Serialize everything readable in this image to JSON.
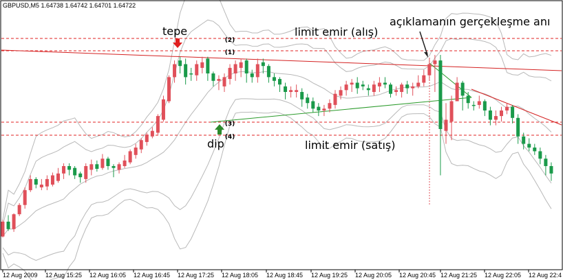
{
  "chart_data": {
    "type": "candlestick",
    "symbol_header": "GBPUSD,M5  1.64738 1.64742 1.64701 1.64722",
    "x_tick_labels": [
      "12 Aug 2009",
      "12 Aug 15:25",
      "12 Aug 16:05",
      "12 Aug 16:45",
      "12 Aug 17:25",
      "12 Aug 18:05",
      "12 Aug 18:45",
      "12 Aug 19:25",
      "12 Aug 20:05",
      "12 Aug 20:45",
      "12 Aug 21:25",
      "12 Aug 22:05",
      "12 Aug 22:4"
    ],
    "candles": [
      [
        20,
        4,
        22,
        3
      ],
      [
        12,
        20,
        27,
        10
      ],
      [
        28,
        12,
        29,
        9
      ],
      [
        38,
        28,
        40,
        26
      ],
      [
        54,
        38,
        57,
        34
      ],
      [
        66,
        54,
        70,
        52
      ],
      [
        60,
        66,
        68,
        56
      ],
      [
        60,
        57,
        66,
        54
      ],
      [
        66,
        58,
        70,
        54
      ],
      [
        70,
        60,
        73,
        58
      ],
      [
        72,
        64,
        78,
        62
      ],
      [
        80,
        72,
        83,
        66
      ],
      [
        76,
        80,
        83,
        70
      ],
      [
        70,
        78,
        80,
        66
      ],
      [
        68,
        72,
        74,
        62
      ],
      [
        80,
        66,
        83,
        62
      ],
      [
        82,
        76,
        87,
        70
      ],
      [
        77,
        82,
        86,
        74
      ],
      [
        88,
        78,
        93,
        76
      ],
      [
        80,
        88,
        90,
        76
      ],
      [
        78,
        80,
        82,
        68
      ],
      [
        82,
        76,
        84,
        72
      ],
      [
        86,
        80,
        92,
        78
      ],
      [
        96,
        84,
        98,
        82
      ],
      [
        100,
        92,
        104,
        88
      ],
      [
        108,
        98,
        110,
        94
      ],
      [
        114,
        106,
        116,
        102
      ],
      [
        118,
        112,
        122,
        110
      ],
      [
        134,
        116,
        136,
        114
      ],
      [
        152,
        130,
        156,
        128
      ],
      [
        176,
        150,
        178,
        148
      ],
      [
        190,
        176,
        194,
        170
      ],
      [
        188,
        194,
        198,
        180
      ],
      [
        176,
        190,
        196,
        168
      ],
      [
        180,
        180,
        186,
        172
      ],
      [
        190,
        178,
        194,
        172
      ],
      [
        192,
        186,
        198,
        180
      ],
      [
        180,
        196,
        198,
        172
      ],
      [
        172,
        180,
        182,
        166
      ],
      [
        174,
        172,
        178,
        162
      ],
      [
        176,
        166,
        180,
        160
      ],
      [
        186,
        174,
        190,
        168
      ],
      [
        190,
        180,
        194,
        172
      ],
      [
        192,
        186,
        196,
        176
      ],
      [
        180,
        194,
        196,
        170
      ],
      [
        176,
        180,
        184,
        170
      ],
      [
        190,
        176,
        196,
        170
      ],
      [
        188,
        192,
        196,
        180
      ],
      [
        176,
        188,
        190,
        170
      ],
      [
        172,
        176,
        180,
        166
      ],
      [
        168,
        174,
        176,
        160
      ],
      [
        160,
        166,
        170,
        152
      ],
      [
        162,
        160,
        166,
        154
      ],
      [
        162,
        160,
        168,
        154
      ],
      [
        152,
        160,
        164,
        144
      ],
      [
        148,
        154,
        158,
        142
      ],
      [
        142,
        150,
        154,
        138
      ],
      [
        140,
        144,
        148,
        134
      ],
      [
        142,
        140,
        146,
        134
      ],
      [
        148,
        142,
        152,
        138
      ],
      [
        158,
        146,
        162,
        142
      ],
      [
        162,
        156,
        166,
        152
      ],
      [
        168,
        162,
        172,
        156
      ],
      [
        170,
        168,
        174,
        160
      ],
      [
        164,
        170,
        176,
        158
      ],
      [
        166,
        168,
        172,
        162
      ],
      [
        162,
        164,
        168,
        156
      ],
      [
        168,
        160,
        172,
        156
      ],
      [
        170,
        166,
        176,
        160
      ],
      [
        168,
        170,
        176,
        164
      ],
      [
        158,
        168,
        170,
        154
      ],
      [
        162,
        160,
        166,
        156
      ],
      [
        168,
        160,
        170,
        154
      ],
      [
        164,
        168,
        172,
        158
      ],
      [
        166,
        164,
        170,
        156
      ],
      [
        170,
        166,
        178,
        164
      ],
      [
        178,
        170,
        184,
        166
      ],
      [
        190,
        178,
        196,
        172
      ],
      [
        194,
        190,
        200,
        160
      ],
      [
        120,
        194,
        200,
        70
      ],
      [
        130,
        118,
        148,
        104
      ],
      [
        150,
        128,
        156,
        108
      ],
      [
        170,
        150,
        176,
        150
      ],
      [
        156,
        170,
        172,
        140
      ],
      [
        148,
        156,
        160,
        142
      ],
      [
        146,
        146,
        150,
        140
      ],
      [
        150,
        146,
        156,
        142
      ],
      [
        140,
        150,
        152,
        134
      ],
      [
        130,
        140,
        144,
        124
      ],
      [
        134,
        130,
        140,
        124
      ],
      [
        140,
        134,
        144,
        128
      ],
      [
        144,
        140,
        148,
        136
      ],
      [
        132,
        144,
        146,
        126
      ],
      [
        112,
        132,
        136,
        104
      ],
      [
        104,
        112,
        116,
        98
      ],
      [
        100,
        104,
        110,
        96
      ],
      [
        96,
        100,
        104,
        92
      ],
      [
        88,
        96,
        100,
        82
      ],
      [
        80,
        88,
        92,
        70
      ],
      [
        72,
        80,
        84,
        64
      ]
    ],
    "levels": [
      {
        "label": "(1)",
        "style": "dashed"
      },
      {
        "label": "(2)",
        "style": "dashed"
      },
      {
        "label": "(3)",
        "style": "dashed"
      },
      {
        "label": "(4)",
        "style": "dashed"
      }
    ],
    "annotations": {
      "tepe": "tepe",
      "dip": "dip",
      "limit_buy": "limit emir (alış)",
      "limit_sell": "limit emir (satış)",
      "announcement": "açıklamanın gerçekleşme anı"
    },
    "colors": {
      "bull": "#1a9a4a",
      "bear": "#e0505a",
      "level": "#e02020",
      "bands": "#b8b8b8",
      "green_line": "#2a9a2a",
      "red_line": "#d42020"
    },
    "grid": false
  }
}
